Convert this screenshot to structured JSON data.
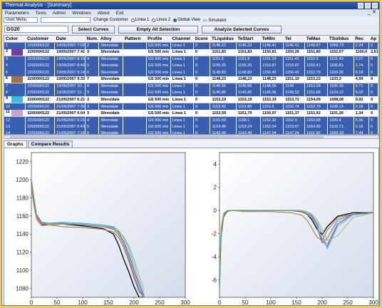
{
  "window": {
    "title": "Thermal Analysis - [Summary]"
  },
  "menu": [
    "Parameters",
    "Tools",
    "Admin",
    "Windows",
    "About",
    "Exit"
  ],
  "toolbar": {
    "user_menu": "User Menu",
    "change_customer": "Change Customer",
    "radios": [
      {
        "label": "Linea 1",
        "on": false
      },
      {
        "label": "Linea 2",
        "on": false
      },
      {
        "label": "Global View",
        "on": true
      }
    ],
    "simulator": "Simulator"
  },
  "grid_selector": "GG20",
  "buttons": {
    "select": "Select Curves",
    "empty": "Empty All Selection",
    "analyze": "Analyze Selected Curves"
  },
  "table": {
    "columns": [
      "Color",
      "Customer",
      "Date",
      "Num.",
      "Alloy",
      "Pattern",
      "Profile",
      "Channel",
      "Score",
      "TLiquidus",
      "TeStart",
      "TeMin",
      "Tel",
      "TeMax",
      "TSolidus",
      "Rec",
      "Ap"
    ],
    "rows": [
      {
        "n": "1",
        "swatch": "",
        "customer": "2200000122",
        "date": "19/05/2007 7:02",
        "num": "2",
        "alloy": "Sferoidale",
        "pattern": "",
        "profile": "GS 500 mix",
        "channel": "Linea 1",
        "score": "0",
        "tl": "1146.23",
        "ts": "1146.23",
        "tmin": "1146.41",
        "tel": "1146.41",
        "tmax": "1148.57",
        "tsol": "1099.73",
        "rec": "2.34",
        "ap": "0",
        "sel": false
      },
      {
        "n": "2",
        "swatch": "#7a3b9e",
        "customer": "2200000122",
        "date": "19/05/2007 7:41",
        "num": "3",
        "alloy": "Sferoidale",
        "pattern": "",
        "profile": "GS 500 mix",
        "channel": "Linea 1",
        "score": "0",
        "tl": "1151,83",
        "ts": "1151,83",
        "tmin": "1150,81",
        "tel": "1150,26",
        "tmax": "1151,80",
        "tsol": "1152,07",
        "rec": "1100,0",
        "ap": "2,61",
        "sel": true
      },
      {
        "n": "3",
        "swatch": "",
        "customer": "2200000122",
        "date": "19/05/2007 8:10",
        "num": "4",
        "alloy": "Sferoidale",
        "pattern": "",
        "profile": "GS 500 mix",
        "channel": "Linea 1",
        "score": "0",
        "tl": "1151.8",
        "ts": "1151.8",
        "tmin": "1151.03",
        "tel": "1151.41",
        "tmax": "1153.3",
        "tsol": "1101.43",
        "rec": "2.27",
        "ap": "0",
        "sel": false
      },
      {
        "n": "4",
        "swatch": "",
        "customer": "2200000122",
        "date": "19/05/2007 8:40",
        "num": "5",
        "alloy": "Sferoidale",
        "pattern": "",
        "profile": "GS 500 mix",
        "channel": "Linea 1",
        "score": "0",
        "tl": "1155.26",
        "ts": "1155.26",
        "tmin": "1153.87",
        "tel": "1153.87",
        "tmax": "1153.41",
        "tsol": "1105.81",
        "rec": "1.74",
        "ap": "0",
        "sel": false
      },
      {
        "n": "5",
        "swatch": "",
        "customer": "2200000122",
        "date": "19/05/2007 9:14",
        "num": "6",
        "alloy": "Sferoidale",
        "pattern": "",
        "profile": "GS 500 mix",
        "channel": "Linea 1",
        "score": "0",
        "tl": "1148.83",
        "ts": "1148.83",
        "tmin": "1150.45",
        "tel": "1150.45",
        "tmax": "1152.79",
        "tsol": "1104.36",
        "rec": "6.18",
        "ap": "0",
        "sel": false
      },
      {
        "n": "6",
        "swatch": "#a8703a",
        "customer": "2200000122",
        "date": "19/05/2007 9:33",
        "num": "7",
        "alloy": "Sferoidale",
        "pattern": "",
        "profile": "GS 500 mix",
        "channel": "Linea 1",
        "score": "0",
        "tl": "1148,23",
        "ts": "1148,23",
        "tmin": "1148,23",
        "tel": "1151,10",
        "tmax": "1153,22",
        "tsol": "1103,3",
        "rec": "4,99",
        "ap": "0",
        "sel": true
      },
      {
        "n": "7",
        "swatch": "",
        "customer": "2200000122",
        "date": "19/05/2007 10:..",
        "num": "8",
        "alloy": "Sferoidale",
        "pattern": "",
        "profile": "GS 500 mix",
        "channel": "Linea 1",
        "score": "0",
        "tl": "1146.56",
        "ts": "1146.56",
        "tmin": "1148.56",
        "tel": "1149",
        "tmax": "1153.28",
        "tsol": "1106.35",
        "rec": "6.71",
        "ap": "0",
        "sel": false
      },
      {
        "n": "8",
        "swatch": "",
        "customer": "2200000122",
        "date": "19/05/2007 11:..",
        "num": "9",
        "alloy": "Sferoidale",
        "pattern": "",
        "profile": "GS 500 mix",
        "channel": "Linea 1",
        "score": "0",
        "tl": "1146.86",
        "ts": "1146.86",
        "tmin": "1148.56",
        "tel": "1149.52",
        "tmax": "1151.68",
        "tsol": "1104.12",
        "rec": "5.02",
        "ap": "0",
        "sel": false
      },
      {
        "n": "9",
        "swatch": "#3bbde0",
        "customer": "2200000122",
        "date": "21/05/2007 6:21",
        "num": "3",
        "alloy": "Sferoidale",
        "pattern": "",
        "profile": "GS 500 mix",
        "channel": "Linea 1",
        "score": "0",
        "tl": "1153,19",
        "ts": "1153,19",
        "tmin": "1153,19",
        "tel": "1153,72",
        "tmax": "1154,09",
        "tsol": "1098,06",
        "rec": "0,92",
        "ap": "0",
        "sel": true
      },
      {
        "n": "10",
        "swatch": "",
        "customer": "2200000122",
        "date": "21/05/2007 7:35",
        "num": "3",
        "alloy": "Sferoidale",
        "pattern": "",
        "profile": "GS 500 mix",
        "channel": "Linea 1",
        "score": "0",
        "tl": "1153.92",
        "ts": "1151.85",
        "tmin": "1151.6",
        "tel": "1152.74",
        "tmax": "1153.79",
        "tsol": "1108.13",
        "rec": "2.16",
        "ap": "0",
        "sel": false
      },
      {
        "n": "11",
        "swatch": "#c9a3c7",
        "customer": "2200000122",
        "date": "21/05/2007 6:04",
        "num": "3",
        "alloy": "Sferoidale",
        "pattern": "",
        "profile": "GS 500 mix",
        "channel": "Linea 1",
        "score": "0",
        "tl": "1152,59",
        "ts": "1151,79",
        "tmin": "1150,97",
        "tel": "1151,37",
        "tmax": "1151,92",
        "tsol": "1101,26",
        "rec": "1,34",
        "ap": "0",
        "sel": true
      },
      {
        "n": "12",
        "swatch": "",
        "customer": "2200000122",
        "date": "21/05/2007 6:21",
        "num": "4",
        "alloy": "Sferoidale",
        "pattern": "",
        "profile": "GS 500 mix",
        "channel": "Linea 1",
        "score": "0",
        "tl": "1161.69",
        "ts": "1158.1",
        "tmin": "1152.32",
        "tel": "1152.9",
        "tmax": "1153.68",
        "tsol": "1100.4",
        "rec": "5.36",
        "ap": "0",
        "sel": false
      },
      {
        "n": "13",
        "swatch": "",
        "customer": "2200000122",
        "date": "21/05/2007 6:43",
        "num": "5",
        "alloy": "Sferoidale",
        "pattern": "",
        "profile": "GS 500 mix",
        "channel": "Linea 1",
        "score": "0",
        "tl": "1154.86",
        "ts": "1153.24",
        "tmin": "1152.54",
        "tel": "1153.67",
        "tmax": "1154.95",
        "tsol": "1103.71",
        "rec": "2.16",
        "ap": "0",
        "sel": false
      },
      {
        "n": "14",
        "swatch": "",
        "customer": "2200000122",
        "date": "21/05/2007 7:15",
        "num": "6",
        "alloy": "Sferoidale",
        "pattern": "",
        "profile": "GS 500 mix",
        "channel": "Linea 1",
        "score": "0",
        "tl": "1143.49",
        "ts": "1143.49",
        "tmin": "1147.04",
        "tel": "1147.04",
        "tmax": "1151.92",
        "tsol": "1099.33",
        "rec": "7.44",
        "ap": "0",
        "sel": false
      }
    ]
  },
  "tabs": [
    "Graphs",
    "Compare Results"
  ],
  "chart_data": [
    {
      "type": "line",
      "xlim": [
        0,
        300
      ],
      "ylim": [
        1070,
        1230
      ],
      "xticks": [
        0,
        50,
        100,
        150,
        200,
        250,
        300
      ],
      "yticks": [
        1080,
        1100,
        1120,
        1140,
        1160,
        1180,
        1200,
        1220
      ],
      "grid": false,
      "colors": [
        "#000000",
        "#7a3b9e",
        "#3bbde0",
        "#c9a3c7",
        "#a8703a",
        "#b0b060",
        "#4d8f8f"
      ],
      "series_x": [
        0,
        5,
        10,
        20,
        35,
        60,
        100,
        140,
        160,
        170,
        180,
        190,
        200,
        210,
        220
      ],
      "series": [
        {
          "values": [
            1198,
            1178,
            1160,
            1150,
            1150,
            1151,
            1149,
            1146,
            1140,
            1128,
            1112,
            1098,
            1082,
            1070,
            1070
          ]
        },
        {
          "values": [
            1192,
            1172,
            1158,
            1150,
            1151,
            1152,
            1151,
            1149,
            1147,
            1142,
            1132,
            1118,
            1100,
            1084,
            1070
          ]
        },
        {
          "values": [
            1196,
            1175,
            1160,
            1152,
            1152,
            1153,
            1152,
            1150,
            1148,
            1144,
            1136,
            1124,
            1106,
            1088,
            1072
          ]
        },
        {
          "values": [
            1194,
            1174,
            1159,
            1151,
            1151,
            1152,
            1151,
            1149,
            1146,
            1141,
            1130,
            1115,
            1097,
            1080,
            1070
          ]
        },
        {
          "values": [
            1195,
            1176,
            1160,
            1152,
            1150,
            1148,
            1147,
            1145,
            1142,
            1136,
            1125,
            1110,
            1092,
            1076,
            1070
          ]
        },
        {
          "values": [
            1190,
            1170,
            1156,
            1149,
            1150,
            1151,
            1150,
            1148,
            1146,
            1143,
            1137,
            1127,
            1112,
            1094,
            1078
          ]
        },
        {
          "values": [
            1200,
            1180,
            1162,
            1153,
            1152,
            1152,
            1150,
            1148,
            1145,
            1139,
            1128,
            1113,
            1094,
            1078,
            1070
          ]
        }
      ]
    },
    {
      "type": "line",
      "xlim": [
        0,
        300
      ],
      "ylim": [
        -7.5,
        5
      ],
      "xticks": [
        0,
        50,
        100,
        150,
        200,
        250,
        300
      ],
      "yticks": [
        -6,
        -4,
        -2,
        0,
        2,
        4
      ],
      "grid": false,
      "colors": [
        "#000000",
        "#7a3b9e",
        "#3bbde0",
        "#c9a3c7",
        "#a8703a",
        "#b0b060",
        "#4d8f8f"
      ],
      "series_x": [
        0,
        3,
        8,
        15,
        25,
        50,
        100,
        140,
        160,
        170,
        180,
        190,
        200,
        210,
        230,
        260,
        300
      ],
      "series": [
        {
          "values": [
            -6.5,
            -2.0,
            -0.4,
            0.0,
            0.0,
            0.0,
            0.0,
            0.0,
            -0.1,
            -0.3,
            -0.8,
            -1.6,
            -2.1,
            -1.4,
            -0.5,
            -0.2,
            -0.2
          ]
        },
        {
          "values": [
            -6.0,
            -1.8,
            -0.3,
            0.0,
            0.0,
            0.0,
            0.0,
            0.0,
            0.0,
            -0.2,
            -0.5,
            -1.2,
            -2.6,
            -3.1,
            -1.2,
            -0.3,
            -0.2
          ]
        },
        {
          "values": [
            -6.8,
            -2.2,
            -0.5,
            -0.1,
            0.0,
            0.0,
            0.0,
            0.0,
            0.0,
            -0.1,
            -0.4,
            -1.0,
            -2.0,
            -3.3,
            -1.4,
            -0.4,
            -0.2
          ]
        },
        {
          "values": [
            -5.8,
            -1.6,
            -0.3,
            0.0,
            0.0,
            0.0,
            0.0,
            0.0,
            0.0,
            -0.2,
            -0.6,
            -1.4,
            -2.4,
            -2.9,
            -1.0,
            -0.3,
            -0.2
          ]
        },
        {
          "values": [
            -6.2,
            -1.9,
            -0.4,
            0.0,
            0.0,
            -0.1,
            -0.1,
            -0.2,
            -0.4,
            -0.8,
            -1.5,
            -2.3,
            -2.6,
            -1.7,
            -0.6,
            -0.3,
            -0.2
          ]
        },
        {
          "values": [
            -5.5,
            -1.5,
            -0.2,
            0.0,
            0.0,
            0.0,
            0.0,
            0.0,
            0.0,
            -0.1,
            -0.3,
            -0.8,
            -1.6,
            -2.6,
            -2.2,
            -0.6,
            -0.2
          ]
        },
        {
          "values": [
            -7.0,
            -2.4,
            -0.6,
            -0.1,
            0.0,
            0.0,
            0.0,
            0.0,
            -0.1,
            -0.3,
            -0.7,
            -1.5,
            -2.8,
            -2.4,
            -0.8,
            -0.3,
            -0.2
          ]
        }
      ]
    }
  ]
}
